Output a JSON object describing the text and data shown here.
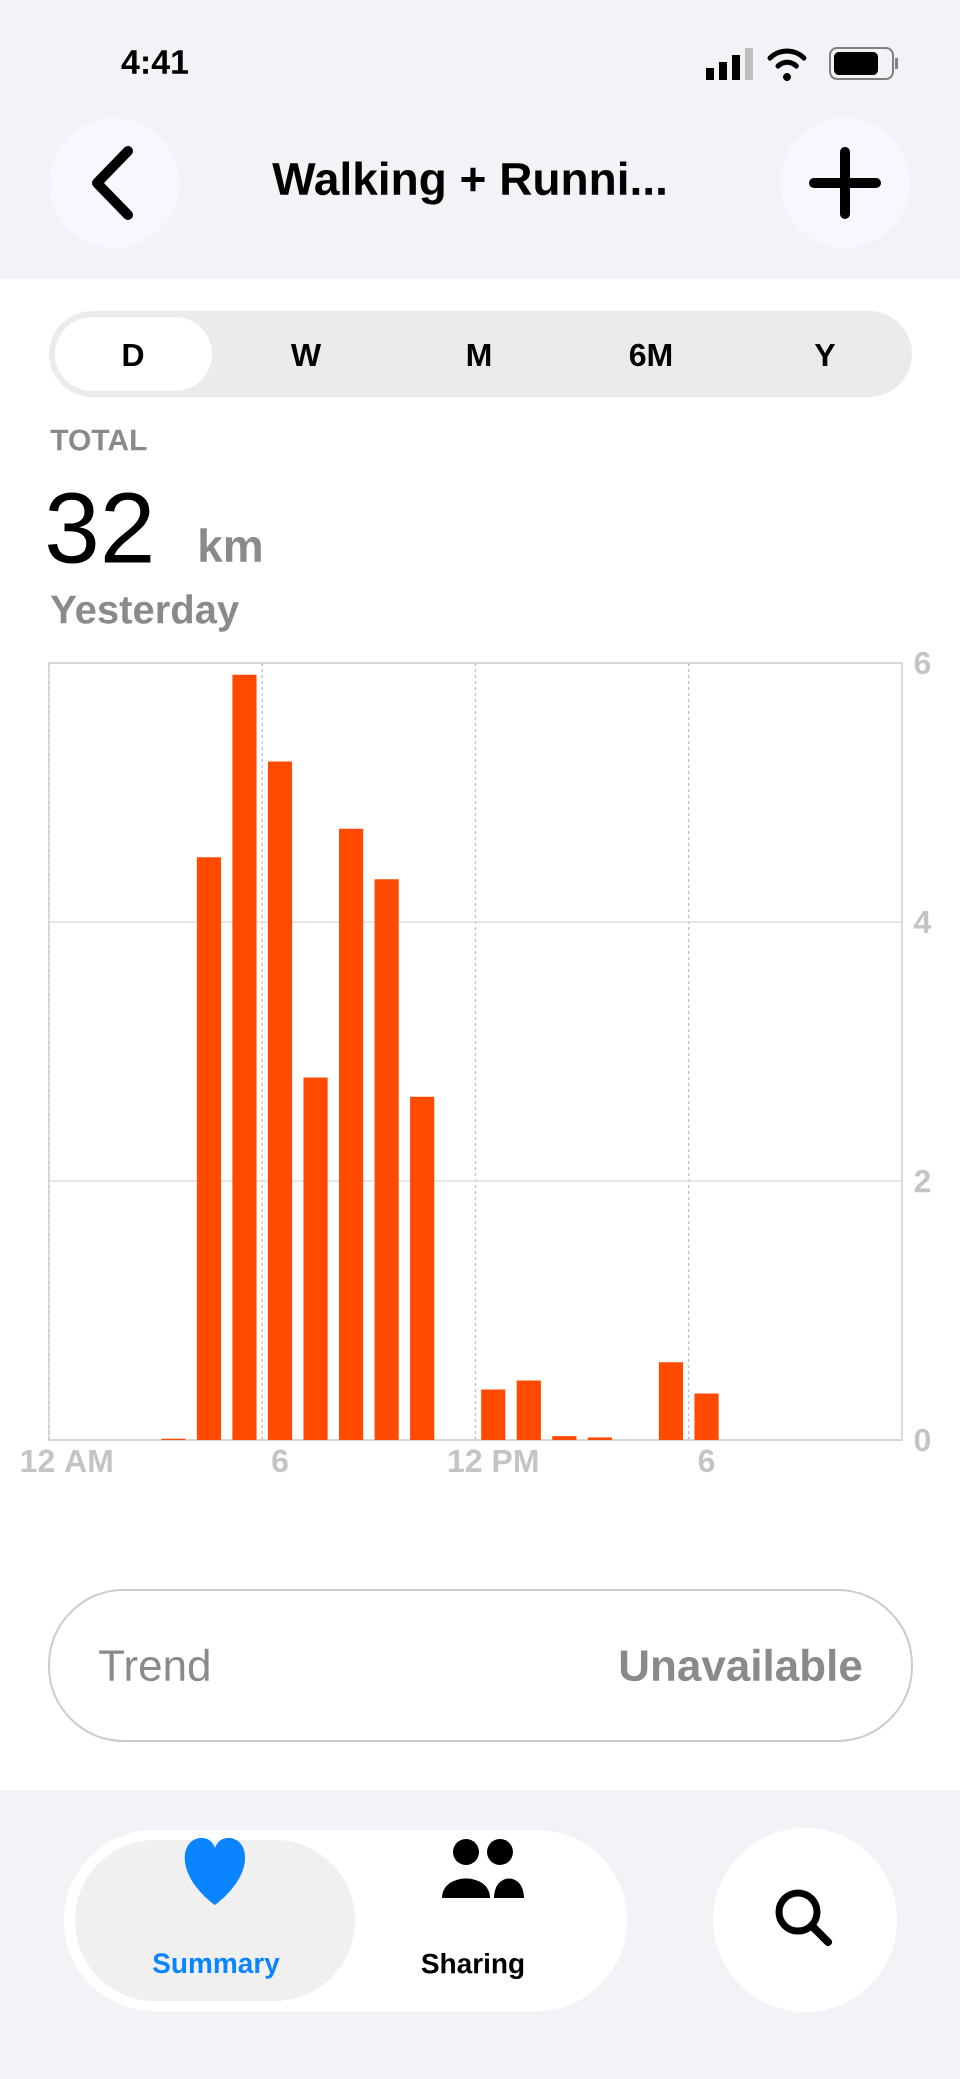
{
  "chart_data": {
    "type": "bar",
    "title": "Walking + Runni...",
    "annotations": [
      "4:41",
      "D",
      "W",
      "M",
      "6M",
      "Y",
      "TOTAL",
      "32",
      "km",
      "Yesterday",
      "Trend",
      "Unavailable",
      "Summary",
      "Sharing"
    ],
    "categories": [
      "12 AM",
      null,
      null,
      null,
      null,
      null,
      "6",
      null,
      null,
      null,
      null,
      null,
      "12 PM",
      null,
      null,
      null,
      null,
      null,
      "6",
      null,
      null,
      null,
      null,
      null
    ],
    "values": [
      null,
      null,
      null,
      0.01,
      4.5,
      5.91,
      5.24,
      2.8,
      4.72,
      4.33,
      2.65,
      null,
      0.39,
      0.46,
      0.03,
      0.02,
      null,
      0.6,
      0.36,
      null,
      null,
      null,
      null,
      null
    ],
    "color": "#ff4a00",
    "ylim": [
      0,
      6
    ],
    "yticks": [
      0,
      2,
      4,
      6
    ],
    "grid": true
  }
}
